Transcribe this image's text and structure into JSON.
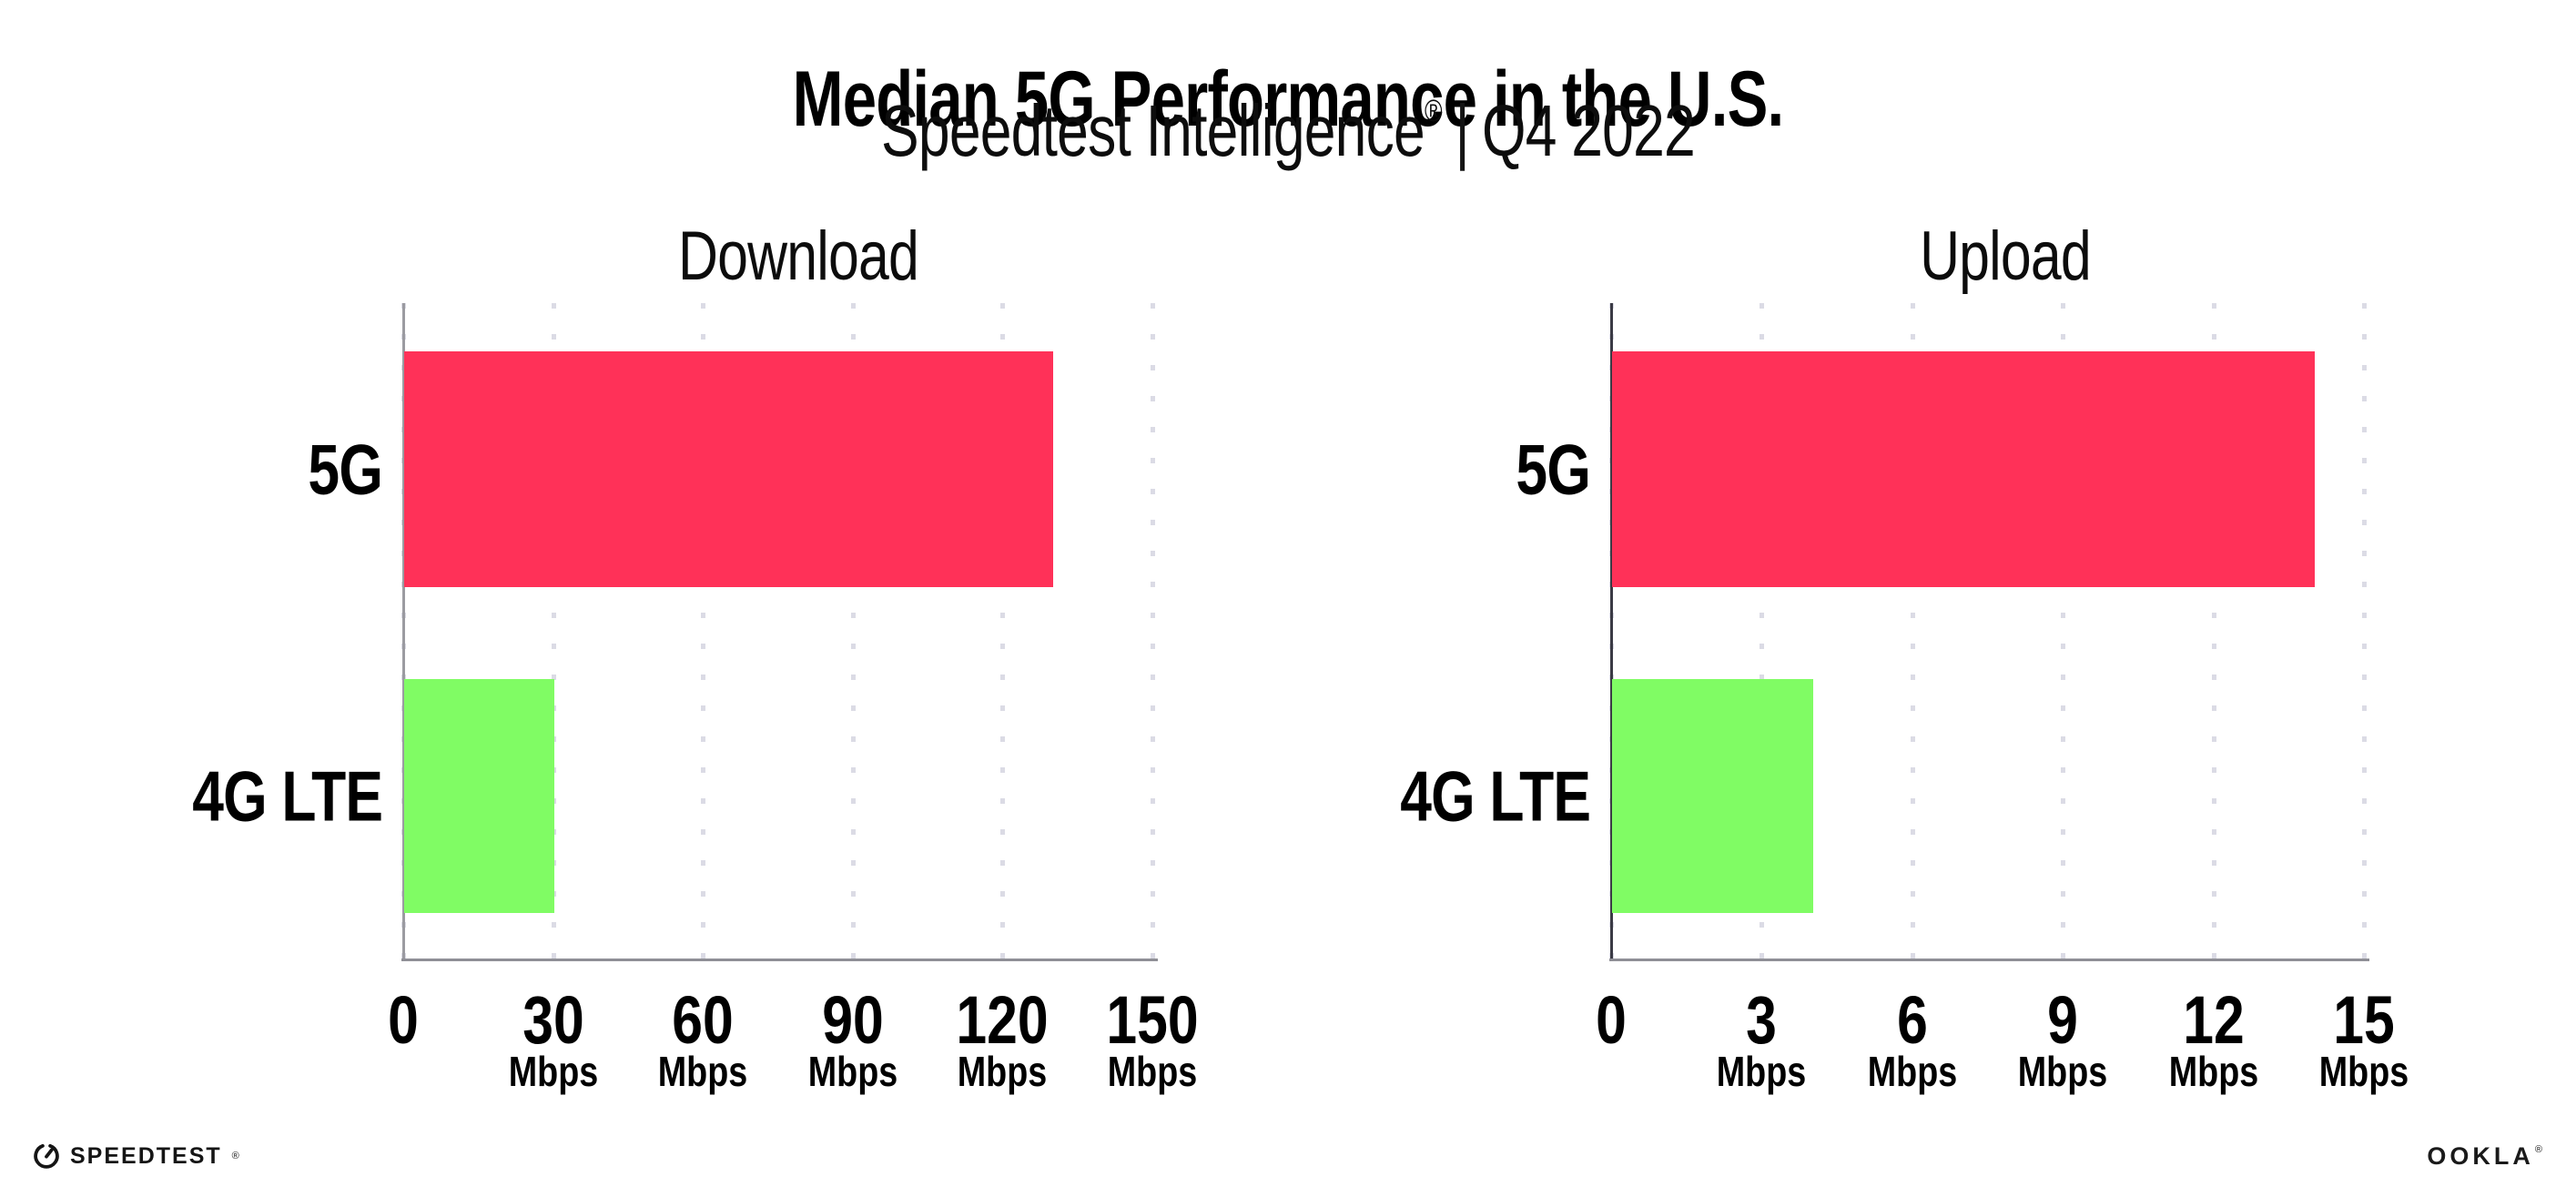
{
  "header": {
    "title": "Median 5G Performance in the U.S.",
    "subtitle_brand": "Speedtest Intelligence",
    "subtitle_reg": "®",
    "subtitle_divider": "|",
    "subtitle_period": "Q4 2022"
  },
  "chart_data": [
    {
      "type": "bar",
      "orientation": "horizontal",
      "title": "Download",
      "categories": [
        "5G",
        "4G LTE"
      ],
      "values": [
        130,
        30
      ],
      "unit": "Mbps",
      "xlim": [
        0,
        150
      ],
      "xticks": [
        0,
        30,
        60,
        90,
        120,
        150
      ],
      "tick_unit_label": "Mbps",
      "bar_colors": [
        "#ff3158",
        "#80fc64"
      ],
      "grid": "dotted-vertical",
      "legend": "none"
    },
    {
      "type": "bar",
      "orientation": "horizontal",
      "title": "Upload",
      "categories": [
        "5G",
        "4G LTE"
      ],
      "values": [
        14,
        4
      ],
      "unit": "Mbps",
      "xlim": [
        0,
        15
      ],
      "xticks": [
        0,
        3,
        6,
        9,
        12,
        15
      ],
      "tick_unit_label": "Mbps",
      "bar_colors": [
        "#ff3158",
        "#80fc64"
      ],
      "grid": "dotted-vertical",
      "legend": "none"
    }
  ],
  "colors": {
    "bar_5g": "#ff3158",
    "bar_4g_lte": "#80fc64",
    "gridline": "#dbdbe5",
    "axis_baseline": "#8f8f96",
    "download_axis": "#9b9ba1",
    "upload_axis": "#3b3b45",
    "text": "#000000"
  },
  "footer": {
    "speedtest_label": "SPEEDTEST",
    "speedtest_reg": "®",
    "ookla_label": "OOKLA",
    "ookla_reg": "®"
  }
}
